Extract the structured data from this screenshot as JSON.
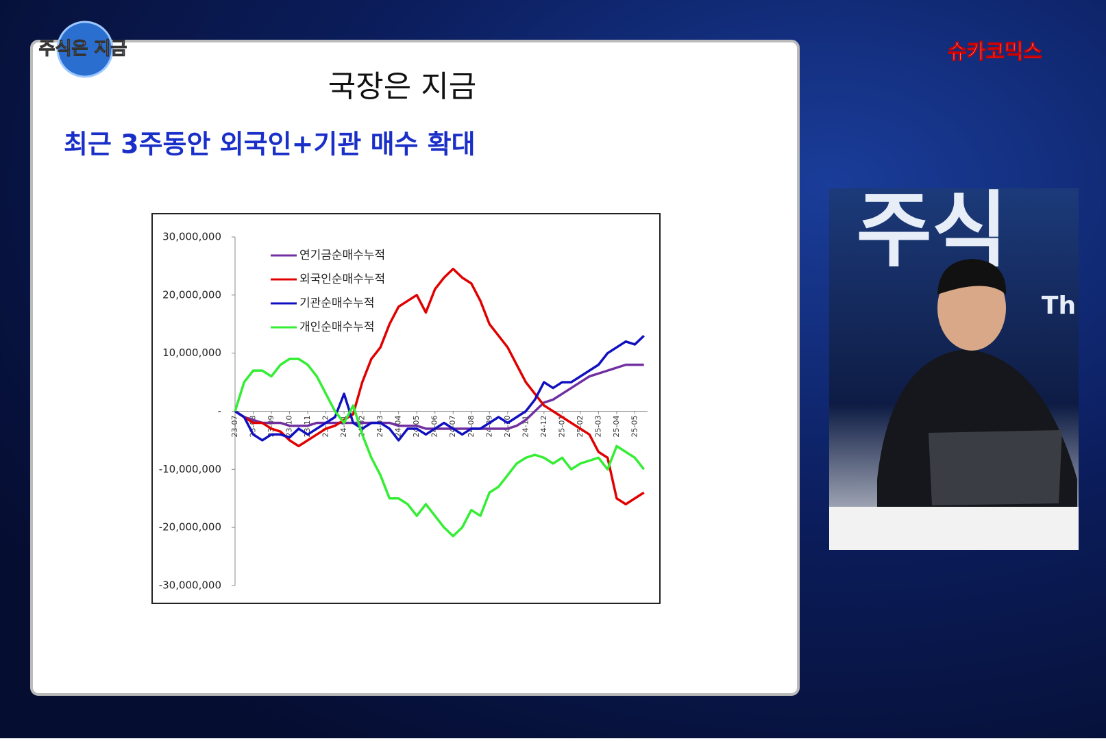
{
  "overlay": {
    "logo": "주식은 지금",
    "channel": "슈카코믹스",
    "backdrop": "주식",
    "backdrop_sub": "Th"
  },
  "chart_data": {
    "type": "line",
    "title": "국장은 지금",
    "subtitle": "최근 3주동안 외국인+기관 매수 확대",
    "x": [
      0,
      0.5,
      1,
      1.5,
      2,
      2.5,
      3,
      3.5,
      4,
      4.5,
      5,
      5.5,
      6,
      6.5,
      7,
      7.5,
      8,
      8.5,
      9,
      9.5,
      10,
      10.5,
      11,
      11.5,
      12,
      12.5,
      13,
      13.5,
      14,
      14.5,
      15,
      15.5,
      16,
      16.5,
      17,
      17.5,
      18,
      18.5,
      19,
      19.5,
      20,
      20.5,
      21,
      21.5,
      22,
      22.5
    ],
    "xlim": [
      0,
      22.7
    ],
    "xticks": [
      {
        "value": 0,
        "label": "23-07"
      },
      {
        "value": 1,
        "label": "23-08"
      },
      {
        "value": 2,
        "label": "23-09"
      },
      {
        "value": 3,
        "label": "23-10"
      },
      {
        "value": 4,
        "label": "23-11"
      },
      {
        "value": 5,
        "label": "23-12"
      },
      {
        "value": 6,
        "label": "24-01"
      },
      {
        "value": 7,
        "label": "24-02"
      },
      {
        "value": 8,
        "label": "24-03"
      },
      {
        "value": 9,
        "label": "24-04"
      },
      {
        "value": 10,
        "label": "24-05"
      },
      {
        "value": 11,
        "label": "24-06"
      },
      {
        "value": 12,
        "label": "24-07"
      },
      {
        "value": 13,
        "label": "24-08"
      },
      {
        "value": 14,
        "label": "24-09"
      },
      {
        "value": 15,
        "label": "24-10"
      },
      {
        "value": 16,
        "label": "24-11"
      },
      {
        "value": 17,
        "label": "24-12"
      },
      {
        "value": 18,
        "label": "25-01"
      },
      {
        "value": 19,
        "label": "25-02"
      },
      {
        "value": 20,
        "label": "25-03"
      },
      {
        "value": 21,
        "label": "25-04"
      },
      {
        "value": 22,
        "label": "25-05"
      }
    ],
    "ylim": [
      -30000000,
      30000000
    ],
    "yticks": [
      {
        "value": 30000000,
        "label": "30,000,000"
      },
      {
        "value": 20000000,
        "label": "20,000,000"
      },
      {
        "value": 10000000,
        "label": "10,000,000"
      },
      {
        "value": 0,
        "label": "-"
      },
      {
        "value": -10000000,
        "label": "-10,000,000"
      },
      {
        "value": -20000000,
        "label": "-20,000,000"
      },
      {
        "value": -30000000,
        "label": "-30,000,000"
      }
    ],
    "legend": "upper-left",
    "series": [
      {
        "name": "연기금순매수누적",
        "color": "#7030a0",
        "values": [
          0,
          -1000000,
          -1500000,
          -2000000,
          -2000000,
          -2000000,
          -2500000,
          -2500000,
          -2500000,
          -2000000,
          -2000000,
          -2000000,
          -2000000,
          -2000000,
          -2000000,
          -2000000,
          -2000000,
          -2000000,
          -2500000,
          -2500000,
          -2500000,
          -3000000,
          -3000000,
          -3000000,
          -3000000,
          -3000000,
          -3000000,
          -3000000,
          -3000000,
          -3000000,
          -3000000,
          -2500000,
          -1500000,
          0,
          1500000,
          2000000,
          3000000,
          4000000,
          5000000,
          6000000,
          6500000,
          7000000,
          7500000,
          8000000,
          8000000,
          8000000
        ]
      },
      {
        "name": "외국인순매수누적",
        "color": "#e00000",
        "values": [
          0,
          -1000000,
          -2000000,
          -2000000,
          -3000000,
          -3500000,
          -5000000,
          -6000000,
          -5000000,
          -4000000,
          -3000000,
          -2500000,
          -1500000,
          -500000,
          5000000,
          9000000,
          11000000,
          15000000,
          18000000,
          19000000,
          20000000,
          17000000,
          21000000,
          23000000,
          24500000,
          23000000,
          22000000,
          19000000,
          15000000,
          13000000,
          11000000,
          8000000,
          5000000,
          3000000,
          1000000,
          0,
          -1000000,
          -2000000,
          -3000000,
          -4000000,
          -7000000,
          -8000000,
          -15000000,
          -16000000,
          -15000000,
          -14000000
        ]
      },
      {
        "name": "기관순매수누적",
        "color": "#1010c0",
        "values": [
          0,
          -1000000,
          -4000000,
          -5000000,
          -4000000,
          -4000000,
          -4500000,
          -3000000,
          -4000000,
          -3000000,
          -2000000,
          -1000000,
          3000000,
          -2000000,
          -3000000,
          -2000000,
          -2000000,
          -3000000,
          -5000000,
          -3000000,
          -3000000,
          -4000000,
          -3000000,
          -2000000,
          -3000000,
          -4000000,
          -3000000,
          -3000000,
          -2000000,
          -1000000,
          -2000000,
          -1000000,
          0,
          2000000,
          5000000,
          4000000,
          5000000,
          5000000,
          6000000,
          7000000,
          8000000,
          10000000,
          11000000,
          12000000,
          11500000,
          13000000
        ]
      },
      {
        "name": "개인순매수누적",
        "color": "#33ee33",
        "values": [
          0,
          5000000,
          7000000,
          7000000,
          6000000,
          8000000,
          9000000,
          9000000,
          8000000,
          6000000,
          3000000,
          0,
          -2000000,
          1000000,
          -4000000,
          -8000000,
          -11000000,
          -15000000,
          -15000000,
          -16000000,
          -18000000,
          -16000000,
          -18000000,
          -20000000,
          -21500000,
          -20000000,
          -17000000,
          -18000000,
          -14000000,
          -13000000,
          -11000000,
          -9000000,
          -8000000,
          -7500000,
          -8000000,
          -9000000,
          -8000000,
          -10000000,
          -9000000,
          -8500000,
          -8000000,
          -10000000,
          -6000000,
          -7000000,
          -8000000,
          -10000000
        ]
      }
    ]
  }
}
